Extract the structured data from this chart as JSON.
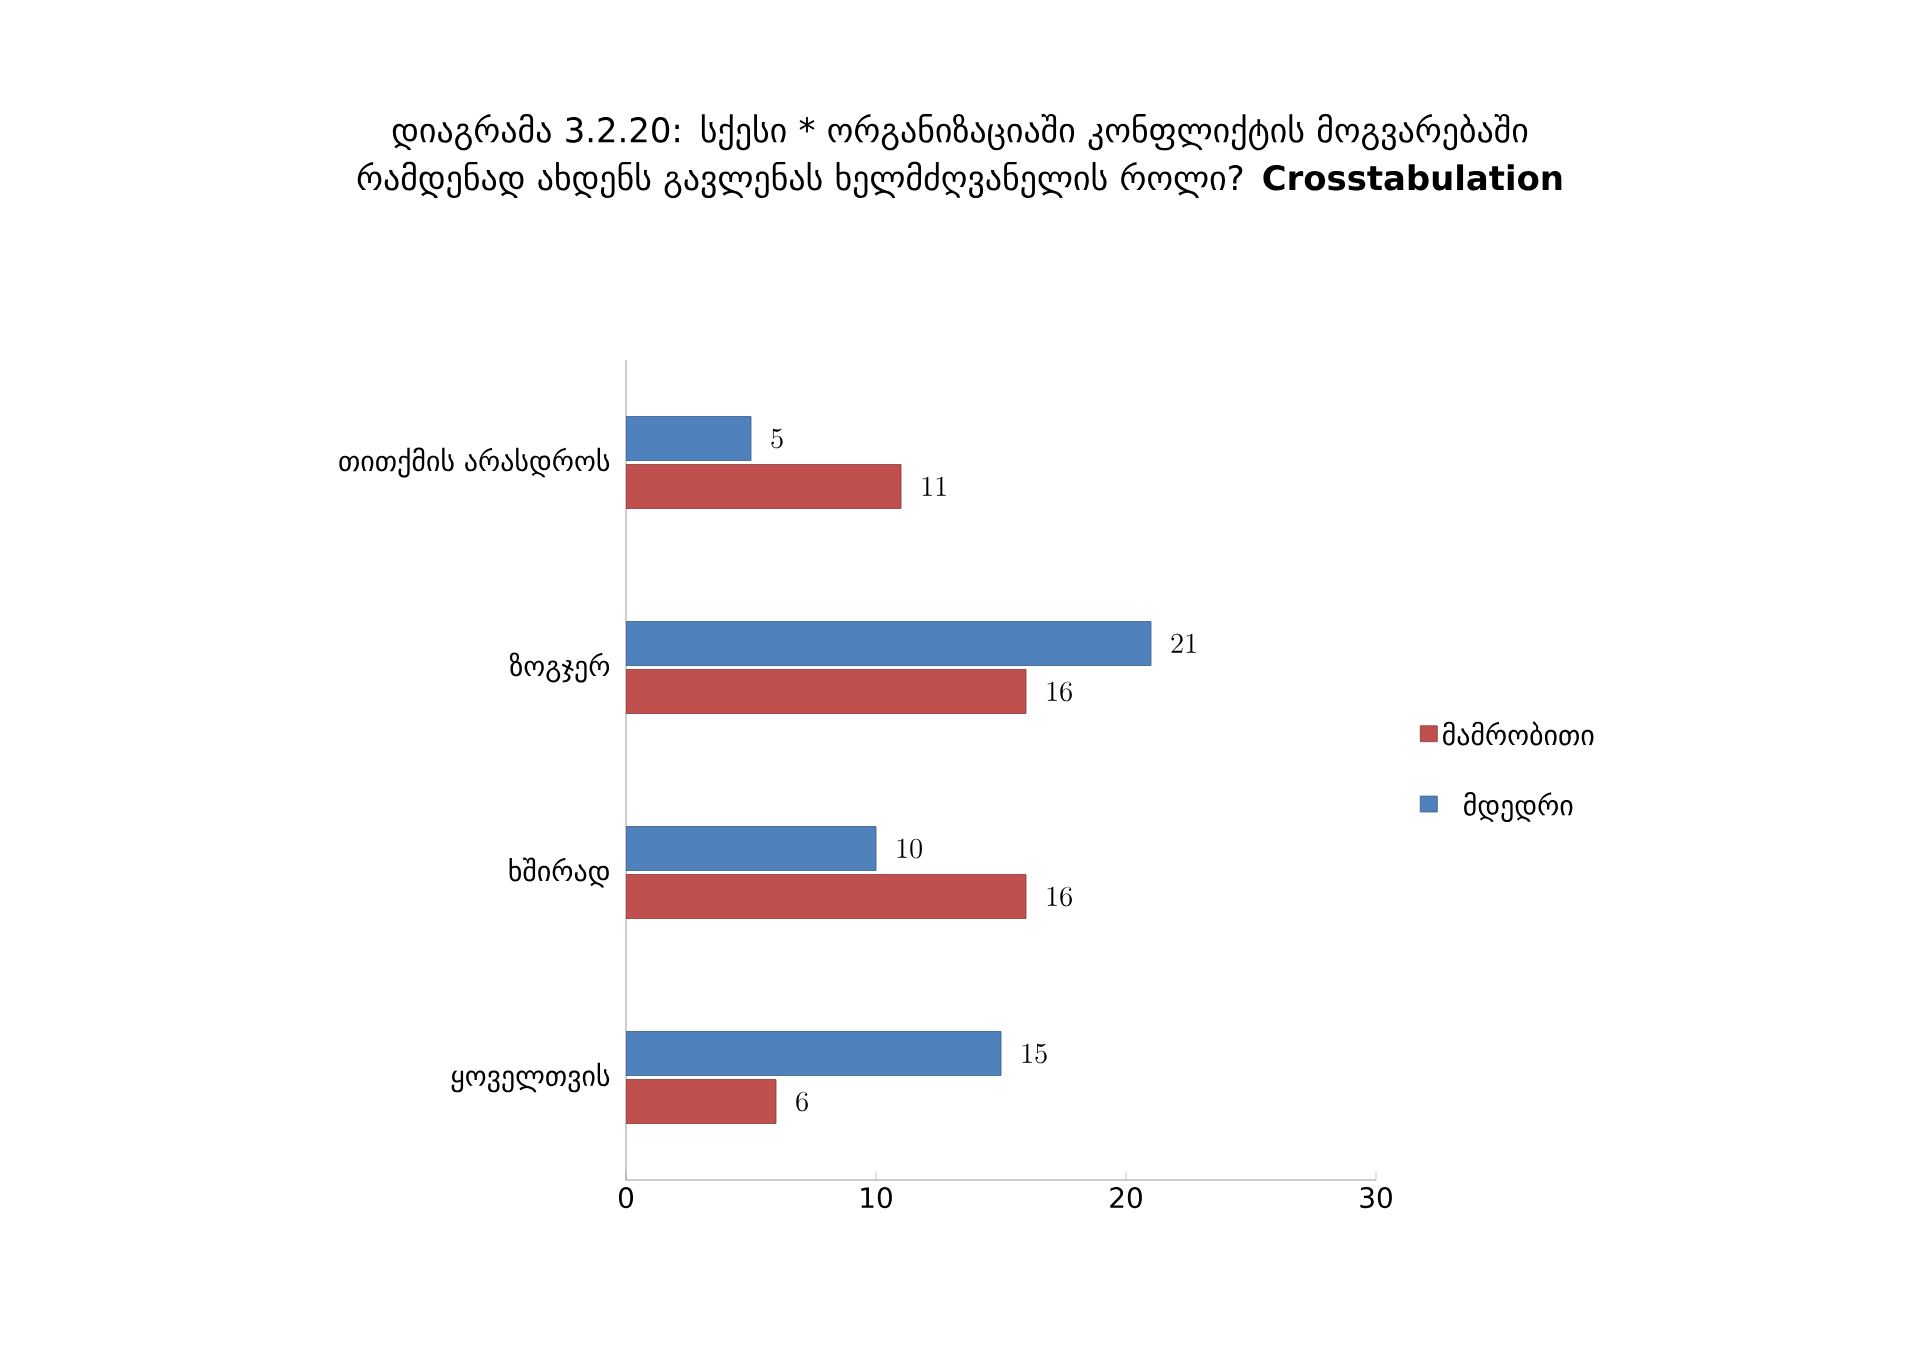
{
  "chart_data": {
    "type": "bar",
    "orientation": "horizontal",
    "title": "დიაგრამა 3.2.20: სქესი * ორგანიზაციაში კონფლიქტის მოგვარებაში რამდენად ახდენს გავლენას ხელმძღვანელის როლი? **Crosstabulation**",
    "categories": [
      "თითქმის არასდროს",
      "ზოგჯერ",
      "ხშირად",
      "ყოველთვის"
    ],
    "series": [
      {
        "name": "მამრობითი",
        "color": "#c0504d",
        "values": [
          11,
          16,
          16,
          6
        ]
      },
      {
        "name": "მდედრი",
        "color": "#4f81bd",
        "values": [
          5,
          21,
          10,
          15
        ]
      }
    ],
    "xlim": [
      0,
      30
    ],
    "xticks": [
      0,
      10,
      20,
      30
    ],
    "grid": false,
    "legend": "right",
    "data_labels": true
  }
}
